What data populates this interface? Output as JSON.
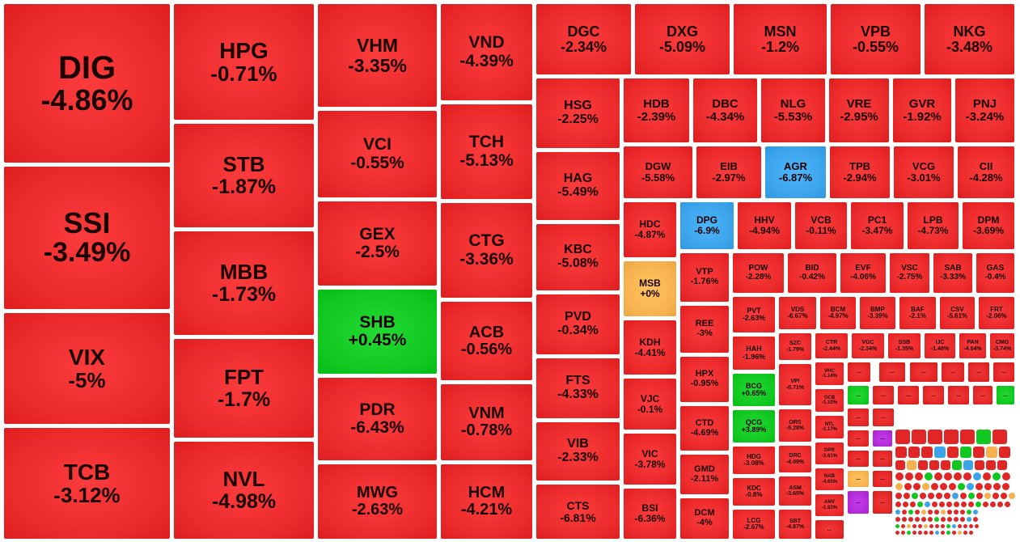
{
  "colors": {
    "down": "#ea2a2a",
    "up": "#10c81f",
    "floor": "#3aa3ea",
    "ref": "#f6b24e",
    "ceiling": "#b32bd8",
    "more": "#e22525"
  },
  "chart_data": {
    "type": "treemap",
    "title": "",
    "cells": [
      {
        "symbol": "DIG",
        "change": "-4.86%",
        "status": "down"
      },
      {
        "symbol": "SSI",
        "change": "-3.49%",
        "status": "down"
      },
      {
        "symbol": "VIX",
        "change": "-5%",
        "status": "down"
      },
      {
        "symbol": "TCB",
        "change": "-3.12%",
        "status": "down"
      },
      {
        "symbol": "HPG",
        "change": "-0.71%",
        "status": "down"
      },
      {
        "symbol": "STB",
        "change": "-1.87%",
        "status": "down"
      },
      {
        "symbol": "MBB",
        "change": "-1.73%",
        "status": "down"
      },
      {
        "symbol": "FPT",
        "change": "-1.7%",
        "status": "down"
      },
      {
        "symbol": "NVL",
        "change": "-4.98%",
        "status": "down"
      },
      {
        "symbol": "VHM",
        "change": "-3.35%",
        "status": "down"
      },
      {
        "symbol": "VCI",
        "change": "-0.55%",
        "status": "down"
      },
      {
        "symbol": "GEX",
        "change": "-2.5%",
        "status": "down"
      },
      {
        "symbol": "SHB",
        "change": "+0.45%",
        "status": "up"
      },
      {
        "symbol": "PDR",
        "change": "-6.43%",
        "status": "down"
      },
      {
        "symbol": "MWG",
        "change": "-2.63%",
        "status": "down"
      },
      {
        "symbol": "VND",
        "change": "-4.39%",
        "status": "down"
      },
      {
        "symbol": "TCH",
        "change": "-5.13%",
        "status": "down"
      },
      {
        "symbol": "CTG",
        "change": "-3.36%",
        "status": "down"
      },
      {
        "symbol": "ACB",
        "change": "-0.56%",
        "status": "down"
      },
      {
        "symbol": "VNM",
        "change": "-0.78%",
        "status": "down"
      },
      {
        "symbol": "HCM",
        "change": "-4.21%",
        "status": "down"
      },
      {
        "symbol": "DGC",
        "change": "-2.34%",
        "status": "down"
      },
      {
        "symbol": "DXG",
        "change": "-5.09%",
        "status": "down"
      },
      {
        "symbol": "MSN",
        "change": "-1.2%",
        "status": "down"
      },
      {
        "symbol": "VPB",
        "change": "-0.55%",
        "status": "down"
      },
      {
        "symbol": "NKG",
        "change": "-3.48%",
        "status": "down"
      },
      {
        "symbol": "HSG",
        "change": "-2.25%",
        "status": "down"
      },
      {
        "symbol": "HAG",
        "change": "-5.49%",
        "status": "down"
      },
      {
        "symbol": "KBC",
        "change": "-5.08%",
        "status": "down"
      },
      {
        "symbol": "PVD",
        "change": "-0.34%",
        "status": "down"
      },
      {
        "symbol": "FTS",
        "change": "-4.33%",
        "status": "down"
      },
      {
        "symbol": "VIB",
        "change": "-2.33%",
        "status": "down"
      },
      {
        "symbol": "CTS",
        "change": "-6.81%",
        "status": "down"
      },
      {
        "symbol": "HDB",
        "change": "-2.39%",
        "status": "down"
      },
      {
        "symbol": "DBC",
        "change": "-4.34%",
        "status": "down"
      },
      {
        "symbol": "NLG",
        "change": "-5.53%",
        "status": "down"
      },
      {
        "symbol": "VRE",
        "change": "-2.95%",
        "status": "down"
      },
      {
        "symbol": "GVR",
        "change": "-1.92%",
        "status": "down"
      },
      {
        "symbol": "PNJ",
        "change": "-3.24%",
        "status": "down"
      },
      {
        "symbol": "DGW",
        "change": "-5.58%",
        "status": "down"
      },
      {
        "symbol": "EIB",
        "change": "-2.97%",
        "status": "down"
      },
      {
        "symbol": "AGR",
        "change": "-6.87%",
        "status": "floor"
      },
      {
        "symbol": "TPB",
        "change": "-2.94%",
        "status": "down"
      },
      {
        "symbol": "VCG",
        "change": "-3.01%",
        "status": "down"
      },
      {
        "symbol": "CII",
        "change": "-4.28%",
        "status": "down"
      },
      {
        "symbol": "HDC",
        "change": "-4.87%",
        "status": "down"
      },
      {
        "symbol": "DPG",
        "change": "-6.9%",
        "status": "floor"
      },
      {
        "symbol": "HHV",
        "change": "-4.94%",
        "status": "down"
      },
      {
        "symbol": "VCB",
        "change": "-0.11%",
        "status": "down"
      },
      {
        "symbol": "PC1",
        "change": "-3.47%",
        "status": "down"
      },
      {
        "symbol": "LPB",
        "change": "-4.73%",
        "status": "down"
      },
      {
        "symbol": "DPM",
        "change": "-3.69%",
        "status": "down"
      },
      {
        "symbol": "MSB",
        "change": "+0%",
        "status": "ref"
      },
      {
        "symbol": "KDH",
        "change": "-4.41%",
        "status": "down"
      },
      {
        "symbol": "VJC",
        "change": "-0.1%",
        "status": "down"
      },
      {
        "symbol": "VIC",
        "change": "-3.78%",
        "status": "down"
      },
      {
        "symbol": "BSI",
        "change": "-6.36%",
        "status": "down"
      },
      {
        "symbol": "VTP",
        "change": "-1.76%",
        "status": "down"
      },
      {
        "symbol": "REE",
        "change": "-3%",
        "status": "down"
      },
      {
        "symbol": "HPX",
        "change": "-0.95%",
        "status": "down"
      },
      {
        "symbol": "CTD",
        "change": "-4.69%",
        "status": "down"
      },
      {
        "symbol": "GMD",
        "change": "-2.11%",
        "status": "down"
      },
      {
        "symbol": "DCM",
        "change": "-4%",
        "status": "down"
      },
      {
        "symbol": "POW",
        "change": "-2.28%",
        "status": "down"
      },
      {
        "symbol": "BID",
        "change": "-0.42%",
        "status": "down"
      },
      {
        "symbol": "EVF",
        "change": "-4.06%",
        "status": "down"
      },
      {
        "symbol": "VSC",
        "change": "-2.75%",
        "status": "down"
      },
      {
        "symbol": "SAB",
        "change": "-3.33%",
        "status": "down"
      },
      {
        "symbol": "GAS",
        "change": "-0.4%",
        "status": "down"
      },
      {
        "symbol": "PVT",
        "change": "-2.63%",
        "status": "down"
      },
      {
        "symbol": "VDS",
        "change": "-6.67%",
        "status": "down"
      },
      {
        "symbol": "BCM",
        "change": "-4.97%",
        "status": "down"
      },
      {
        "symbol": "BMP",
        "change": "-3.39%",
        "status": "down"
      },
      {
        "symbol": "BAF",
        "change": "-2.1%",
        "status": "down"
      },
      {
        "symbol": "CSV",
        "change": "-5.61%",
        "status": "down"
      },
      {
        "symbol": "FRT",
        "change": "-2.06%",
        "status": "down"
      },
      {
        "symbol": "HAH",
        "change": "-1.96%",
        "status": "down"
      },
      {
        "symbol": "SZC",
        "change": "-1.79%",
        "status": "down"
      },
      {
        "symbol": "CTR",
        "change": "-2.44%",
        "status": "down"
      },
      {
        "symbol": "VGC",
        "change": "-2.34%",
        "status": "down"
      },
      {
        "symbol": "SSB",
        "change": "-1.35%",
        "status": "down"
      },
      {
        "symbol": "IJC",
        "change": "-1.48%",
        "status": "down"
      },
      {
        "symbol": "PAN",
        "change": "-4.64%",
        "status": "down"
      },
      {
        "symbol": "CMG",
        "change": "-3.74%",
        "status": "down"
      },
      {
        "symbol": "BCG",
        "change": "+0.65%",
        "status": "up"
      },
      {
        "symbol": "VPI",
        "change": "-0.71%",
        "status": "down"
      },
      {
        "symbol": "VHC",
        "change": "-1.14%",
        "status": "down"
      },
      {
        "symbol": "QCG",
        "change": "+3.89%",
        "status": "up"
      },
      {
        "symbol": "ORS",
        "change": "-5.28%",
        "status": "down"
      },
      {
        "symbol": "OCB",
        "change": "-1.32%",
        "status": "down"
      },
      {
        "symbol": "NTL",
        "change": "-1.17%",
        "status": "down"
      },
      {
        "symbol": "HDG",
        "change": "-3.08%",
        "status": "down"
      },
      {
        "symbol": "DRC",
        "change": "-4.09%",
        "status": "down"
      },
      {
        "symbol": "DPR",
        "change": "-3.61%",
        "status": "down"
      },
      {
        "symbol": "NAB",
        "change": "-4.65%",
        "status": "down"
      },
      {
        "symbol": "KDC",
        "change": "-0.8%",
        "status": "down"
      },
      {
        "symbol": "ASM",
        "change": "-3.65%",
        "status": "down"
      },
      {
        "symbol": "ANV",
        "change": "-1.92%",
        "status": "down"
      },
      {
        "symbol": "LCG",
        "change": "-2.67%",
        "status": "down"
      },
      {
        "symbol": "SBT",
        "change": "-4.87%",
        "status": "down"
      }
    ]
  },
  "more_label": "...",
  "more_blocks": [
    {
      "status": "more"
    },
    {
      "status": "more"
    },
    {
      "status": "more"
    },
    {
      "status": "more"
    },
    {
      "status": "more"
    },
    {
      "status": "more"
    },
    {
      "status": "up"
    },
    {
      "status": "more"
    },
    {
      "status": "more"
    },
    {
      "status": "more"
    },
    {
      "status": "more"
    },
    {
      "status": "more"
    },
    {
      "status": "up"
    },
    {
      "status": "more"
    },
    {
      "status": "more"
    },
    {
      "status": "more"
    },
    {
      "status": "ceiling"
    },
    {
      "status": "more"
    },
    {
      "status": "more"
    },
    {
      "status": "ref"
    },
    {
      "status": "more"
    },
    {
      "status": "ceiling"
    },
    {
      "status": "more"
    }
  ],
  "tiny_statuses": [
    "more",
    "more",
    "more",
    "more",
    "more",
    "up",
    "more",
    "more",
    "more",
    "more",
    "floor",
    "more",
    "up",
    "more",
    "ref",
    "more",
    "more",
    "ref",
    "more",
    "more",
    "more",
    "up",
    "floor",
    "more"
  ]
}
